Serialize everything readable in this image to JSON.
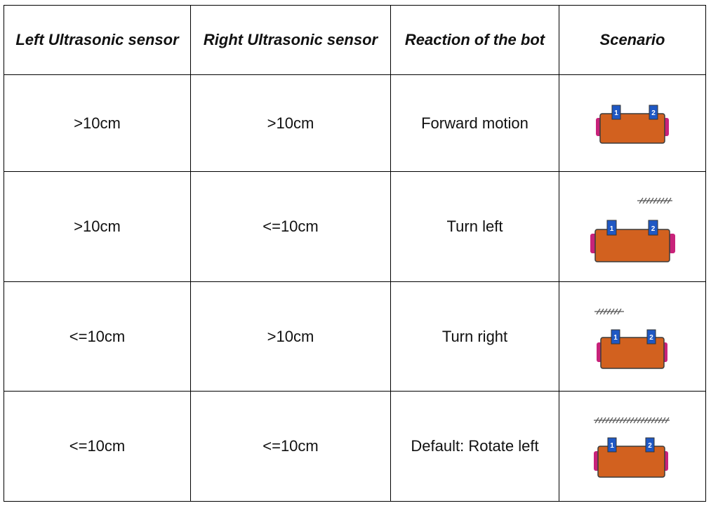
{
  "table": {
    "headers": [
      "Left Ultrasonic sensor",
      "Right Ultrasonic sensor",
      "Reaction of the bot",
      "Scenario"
    ],
    "rows": [
      {
        "left": ">10cm",
        "right": ">10cm",
        "reaction": "Forward motion",
        "obstacle": "none"
      },
      {
        "left": ">10cm",
        "right": "<=10cm",
        "reaction": "Turn left",
        "obstacle": "right"
      },
      {
        "left": "<=10cm",
        "right": ">10cm",
        "reaction": "Turn right",
        "obstacle": "left"
      },
      {
        "left": "<=10cm",
        "right": "<=10cm",
        "reaction": "Default: Rotate left",
        "obstacle": "both"
      }
    ]
  },
  "robot": {
    "sensor_labels": [
      "1",
      "2"
    ],
    "colors": {
      "body": "#d2611f",
      "body_outline": "#3a3a3a",
      "wheel": "#c8227a",
      "sensor": "#1f58c4",
      "obstacle": "#555555"
    }
  }
}
